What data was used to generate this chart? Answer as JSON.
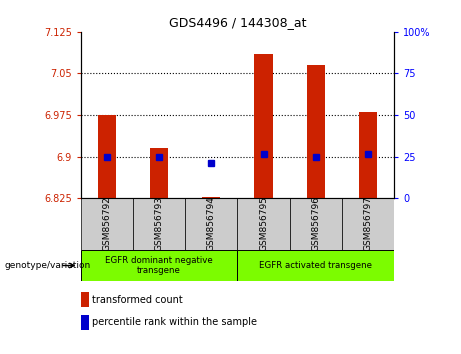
{
  "title": "GDS4496 / 144308_at",
  "samples": [
    "GSM856792",
    "GSM856793",
    "GSM856794",
    "GSM856795",
    "GSM856796",
    "GSM856797"
  ],
  "red_values": [
    6.975,
    6.915,
    6.828,
    7.085,
    7.065,
    6.98
  ],
  "blue_values": [
    6.9,
    6.9,
    6.888,
    6.905,
    6.9,
    6.905
  ],
  "ylim_left": [
    6.825,
    7.125
  ],
  "ylim_right": [
    0,
    100
  ],
  "left_ticks": [
    6.825,
    6.9,
    6.975,
    7.05,
    7.125
  ],
  "right_ticks": [
    0,
    25,
    50,
    75,
    100
  ],
  "left_tick_labels": [
    "6.825",
    "6.9",
    "6.975",
    "7.05",
    "7.125"
  ],
  "right_tick_labels": [
    "0",
    "25",
    "50",
    "75",
    "100%"
  ],
  "hlines": [
    6.9,
    6.975,
    7.05
  ],
  "group1_label": "EGFR dominant negative\ntransgene",
  "group2_label": "EGFR activated transgene",
  "bar_color": "#cc2200",
  "dot_color": "#0000cc",
  "green_bg": "#7CFC00",
  "sample_bg": "#cccccc",
  "legend_red_label": "transformed count",
  "legend_blue_label": "percentile rank within the sample",
  "genotype_label": "genotype/variation",
  "bar_width": 0.35
}
